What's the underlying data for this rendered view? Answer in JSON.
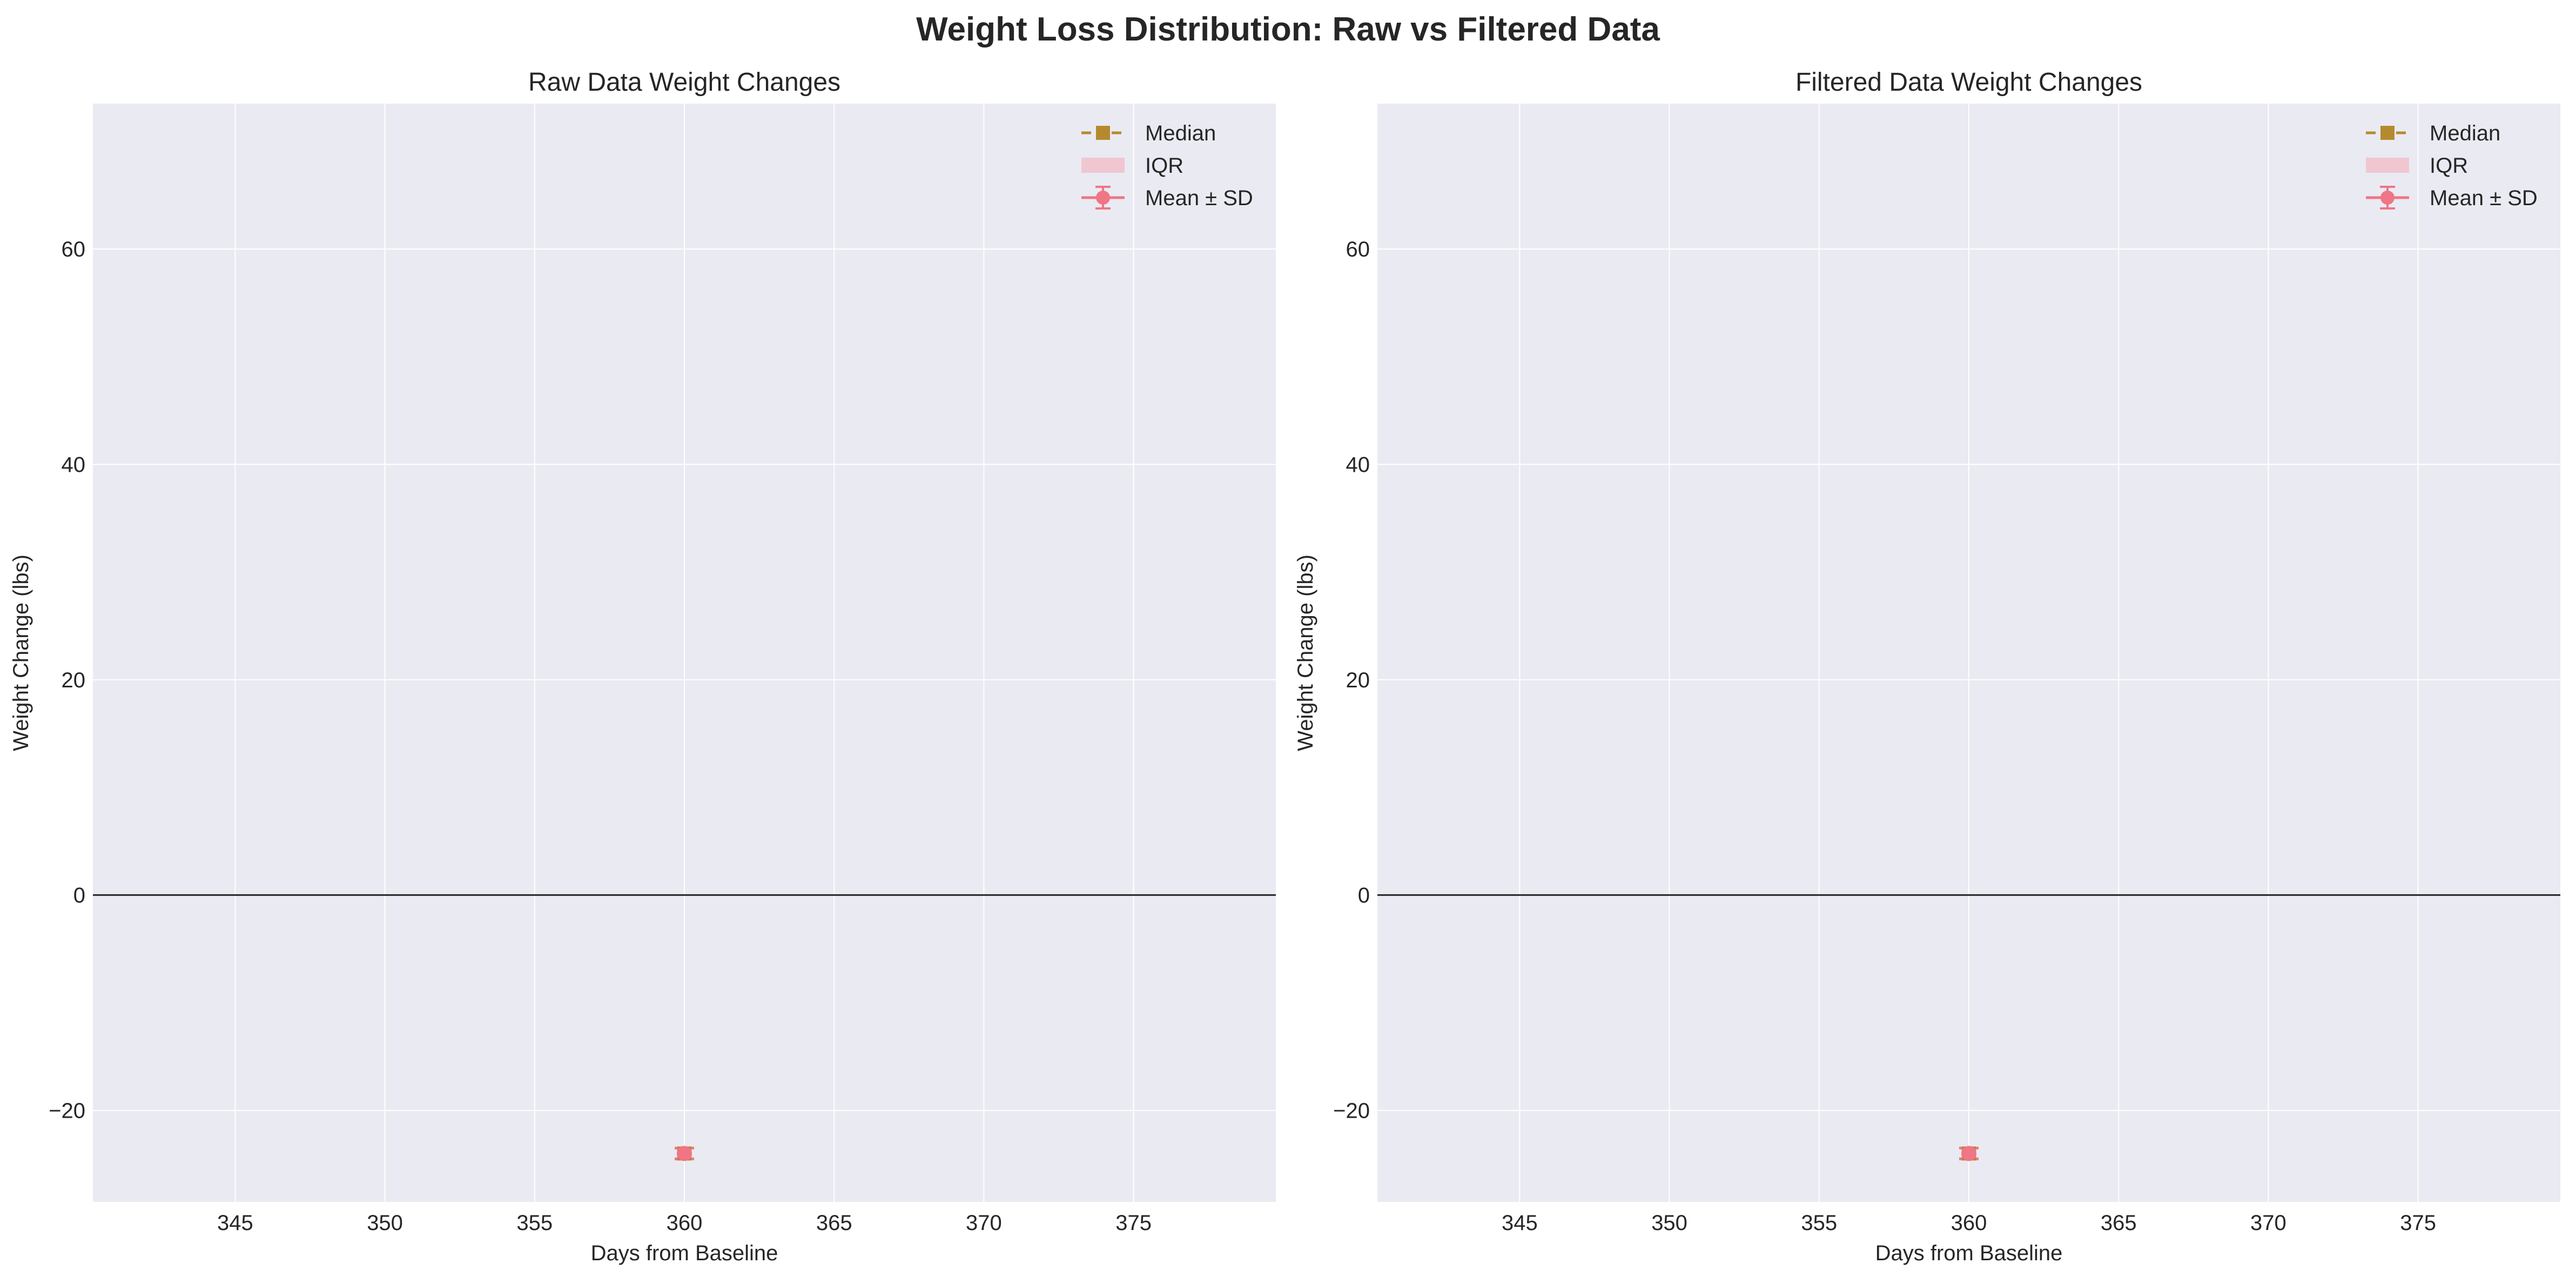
{
  "figure": {
    "suptitle": "Weight Loss Distribution: Raw vs Filtered Data"
  },
  "chart_data": [
    {
      "type": "line",
      "title": "Raw Data Weight Changes",
      "xlabel": "Days from Baseline",
      "ylabel": "Weight Change (lbs)",
      "xlim": [
        340.25,
        379.75
      ],
      "ylim": [
        -28.5,
        73.5
      ],
      "xticks": [
        345,
        350,
        355,
        360,
        365,
        370,
        375
      ],
      "yticks": [
        -20,
        0,
        20,
        40,
        60
      ],
      "ytick_labels": [
        "−20",
        "0",
        "20",
        "40",
        "60"
      ],
      "grid": true,
      "zero_line": 0,
      "legend_position": "top-right",
      "legend": [
        "Median",
        "IQR",
        "Mean ± SD"
      ],
      "series": [
        {
          "name": "Median",
          "x": [
            360
          ],
          "y": [
            -24.0
          ],
          "color": "#b58a2e",
          "marker": "square",
          "linestyle": "dashed"
        },
        {
          "name": "IQR",
          "x": [
            360
          ],
          "lower": [
            -24.4
          ],
          "upper": [
            -23.6
          ],
          "color": "#f0c6d1",
          "kind": "band"
        },
        {
          "name": "Mean ± SD",
          "x": [
            360
          ],
          "y": [
            -24.0
          ],
          "sd": [
            0.5
          ],
          "color": "#f07585",
          "marker": "circle",
          "kind": "errorbar"
        }
      ]
    },
    {
      "type": "line",
      "title": "Filtered Data Weight Changes",
      "xlabel": "Days from Baseline",
      "ylabel": "Weight Change (lbs)",
      "xlim": [
        340.25,
        379.75
      ],
      "ylim": [
        -28.5,
        73.5
      ],
      "xticks": [
        345,
        350,
        355,
        360,
        365,
        370,
        375
      ],
      "yticks": [
        -20,
        0,
        20,
        40,
        60
      ],
      "ytick_labels": [
        "−20",
        "0",
        "20",
        "40",
        "60"
      ],
      "grid": true,
      "zero_line": 0,
      "legend_position": "top-right",
      "legend": [
        "Median",
        "IQR",
        "Mean ± SD"
      ],
      "series": [
        {
          "name": "Median",
          "x": [
            360
          ],
          "y": [
            -24.0
          ],
          "color": "#b58a2e",
          "marker": "square",
          "linestyle": "dashed"
        },
        {
          "name": "IQR",
          "x": [
            360
          ],
          "lower": [
            -24.4
          ],
          "upper": [
            -23.6
          ],
          "color": "#f0c6d1",
          "kind": "band"
        },
        {
          "name": "Mean ± SD",
          "x": [
            360
          ],
          "y": [
            -24.0
          ],
          "sd": [
            0.5
          ],
          "color": "#f07585",
          "marker": "circle",
          "kind": "errorbar"
        }
      ]
    }
  ],
  "colors": {
    "axes_background": "#eaeaf2",
    "grid": "#ffffff",
    "zero_line": "#262626",
    "text": "#262626"
  }
}
